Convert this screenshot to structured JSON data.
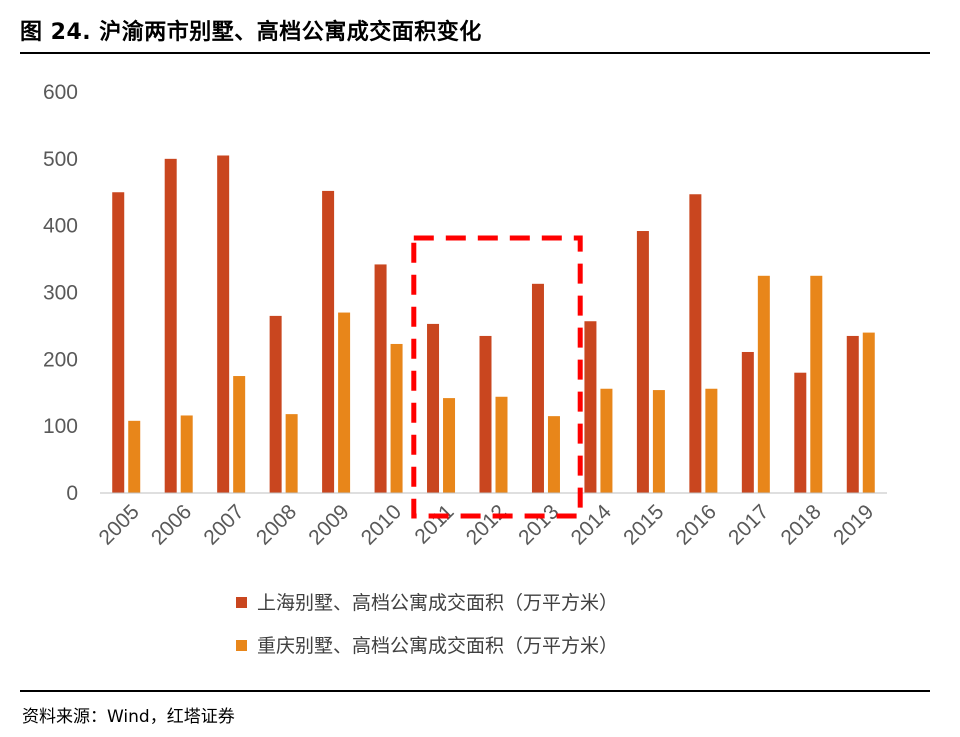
{
  "figure": {
    "title": "图 24. 沪渝两市别墅、高档公寓成交面积变化",
    "source": "资料来源：Wind，红塔证券"
  },
  "colors": {
    "shanghai": "#C9461F",
    "chongqing": "#E8861A",
    "highlight": "#FF0000",
    "axis": "#BFBFBF"
  },
  "chart_data": {
    "type": "bar",
    "categories": [
      "2005",
      "2006",
      "2007",
      "2008",
      "2009",
      "2010",
      "2011",
      "2012",
      "2013",
      "2014",
      "2015",
      "2016",
      "2017",
      "2018",
      "2019"
    ],
    "series": [
      {
        "name": "上海别墅、高档公寓成交面积（万平方米）",
        "values": [
          450,
          500,
          505,
          265,
          452,
          342,
          253,
          235,
          313,
          257,
          392,
          447,
          211,
          180,
          235
        ]
      },
      {
        "name": "重庆别墅、高档公寓成交面积（万平方米）",
        "values": [
          108,
          116,
          175,
          118,
          270,
          223,
          142,
          144,
          115,
          156,
          154,
          156,
          325,
          325,
          240
        ]
      }
    ],
    "ylim": [
      0,
      600
    ],
    "yticks": [
      0,
      100,
      200,
      300,
      400,
      500,
      600
    ],
    "xlabel": "",
    "ylabel": "",
    "grid": false,
    "legend_position": "bottom",
    "annotation": {
      "type": "dashed-box",
      "covers_categories": [
        "2011",
        "2012",
        "2013"
      ]
    }
  }
}
